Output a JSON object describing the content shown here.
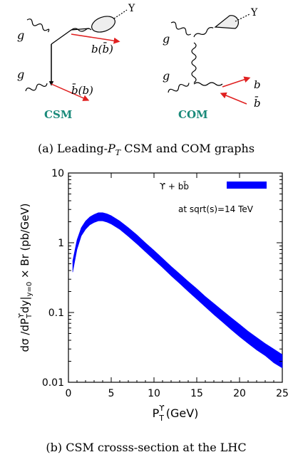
{
  "figure_a": {
    "caption": "(a)  Leading-P_T CSM and COM graphs",
    "caption_parts": {
      "pre": "(a)  Leading-",
      "p": "P",
      "sub": "T",
      "post": " CSM and COM graphs"
    },
    "csm": {
      "label": "CSM",
      "gluon_top": "g",
      "gluon_bottom": "g",
      "quark_top": "b(b̄)",
      "quark_bottom": "b̄(b)",
      "meson": "Υ"
    },
    "com": {
      "label": "COM",
      "gluon_top": "g",
      "gluon_bottom": "g",
      "quark_top": "b",
      "quark_bottom": "b̄",
      "meson": "Υ"
    },
    "colors": {
      "label": "#1a8a7a",
      "quark": "#e02020",
      "line": "#000000"
    }
  },
  "figure_b": {
    "caption": "(b)  CSM crosss-section at the LHC",
    "legend_label": "ϒ  +  bb̄",
    "annotation": "at sqrt(s)=14 TeV",
    "ylabel": "dσ /dP_T^ϒdy|_y=0 × Br  (pb/GeV)",
    "xlabel": "P_T^ϒ (GeV)",
    "band_color": "#0000ff"
  },
  "chart_data": {
    "type": "area",
    "title": "",
    "xlabel": "P_T^ϒ (GeV)",
    "ylabel": "dσ /dP_T^ϒdy|_y=0 × Br  (pb/GeV)",
    "xlim": [
      0,
      25
    ],
    "ylim": [
      0.01,
      10
    ],
    "yscale": "log",
    "xticks": [
      "0",
      "5",
      "10",
      "15",
      "20",
      "25"
    ],
    "yticks": [
      "0.01",
      "0.1",
      "1",
      "10"
    ],
    "legend": "top-right",
    "grid": false,
    "series": [
      {
        "name": "ϒ + bb̄",
        "x": [
          0.5,
          1.0,
          1.5,
          2.0,
          2.5,
          3.0,
          3.5,
          4.0,
          4.5,
          5.0,
          6.0,
          7.0,
          8.0,
          9.0,
          10.0,
          11.0,
          12.0,
          13.0,
          14.0,
          15.0,
          16.0,
          17.0,
          18.0,
          19.0,
          20.0,
          21.0,
          22.0,
          23.0,
          24.0,
          25.0
        ],
        "upper": [
          0.55,
          1.1,
          1.65,
          2.05,
          2.35,
          2.55,
          2.7,
          2.7,
          2.6,
          2.45,
          2.05,
          1.65,
          1.3,
          1.0,
          0.78,
          0.6,
          0.46,
          0.36,
          0.28,
          0.22,
          0.17,
          0.135,
          0.107,
          0.085,
          0.068,
          0.054,
          0.044,
          0.036,
          0.03,
          0.025
        ],
        "lower": [
          0.38,
          0.8,
          1.25,
          1.55,
          1.8,
          1.95,
          2.05,
          2.05,
          1.97,
          1.85,
          1.55,
          1.23,
          0.96,
          0.74,
          0.57,
          0.44,
          0.335,
          0.26,
          0.2,
          0.155,
          0.12,
          0.093,
          0.073,
          0.057,
          0.045,
          0.036,
          0.029,
          0.024,
          0.019,
          0.016
        ]
      }
    ]
  }
}
